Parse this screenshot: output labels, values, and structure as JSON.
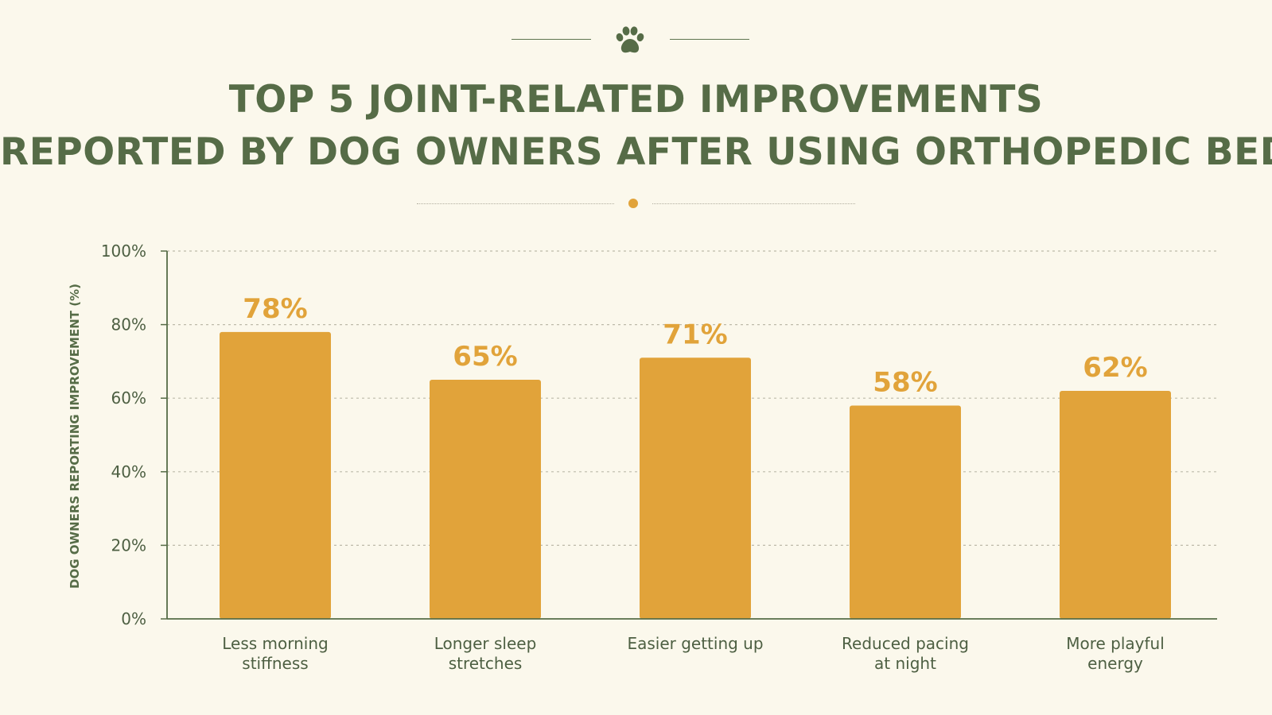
{
  "title": {
    "line1": "TOP 5 JOINT-RELATED IMPROVEMENTS",
    "line2": "REPORTED BY DOG OWNERS AFTER USING ORTHOPEDIC BEDS"
  },
  "ornament": {
    "icon": "paw-icon",
    "accent_color": "#e1a33a",
    "title_color": "#566c47"
  },
  "chart_data": {
    "type": "bar",
    "categories": [
      {
        "line1": "Less morning",
        "line2": "stiffness"
      },
      {
        "line1": "Longer sleep",
        "line2": "stretches"
      },
      {
        "line1": "Easier getting up",
        "line2": ""
      },
      {
        "line1": "Reduced pacing",
        "line2": "at night"
      },
      {
        "line1": "More playful",
        "line2": "energy"
      }
    ],
    "values": [
      78,
      65,
      71,
      58,
      62
    ],
    "value_labels": [
      "78%",
      "65%",
      "71%",
      "58%",
      "62%"
    ],
    "ylabel": "DOG OWNERS REPORTING IMPROVEMENT (%)",
    "xlabel": "",
    "ylim": [
      0,
      100
    ],
    "yticks": [
      0,
      20,
      40,
      60,
      80,
      100
    ],
    "ytick_labels": [
      "0%",
      "20%",
      "40%",
      "60%",
      "80%",
      "100%"
    ],
    "grid": true,
    "bar_color": "#e1a33a",
    "value_label_color": "#e1a33a",
    "axis_color": "#566c47"
  }
}
